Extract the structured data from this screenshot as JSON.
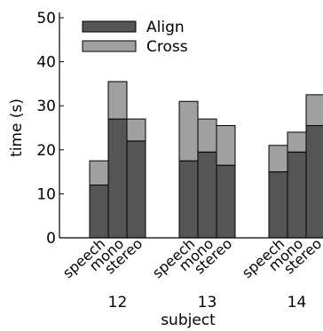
{
  "chart_data": {
    "type": "bar",
    "stacked": true,
    "title": "",
    "ylabel": "time (s)",
    "xlabel": "subject",
    "ylim": [
      0,
      50
    ],
    "yticks": [
      0,
      10,
      20,
      30,
      40,
      50
    ],
    "legend_position": "top-left",
    "grid": false,
    "groups": [
      "12",
      "13",
      "14"
    ],
    "conditions": [
      "speech",
      "mono",
      "stereo"
    ],
    "series": [
      {
        "name": "Align",
        "color": "#555555",
        "values": [
          [
            12,
            27,
            22
          ],
          [
            17.5,
            19.5,
            16.5
          ],
          [
            15,
            19.5,
            25.5
          ]
        ]
      },
      {
        "name": "Cross",
        "color": "#a0a0a0",
        "values": [
          [
            5.5,
            8.5,
            5
          ],
          [
            13.5,
            7.5,
            9
          ],
          [
            6,
            4.5,
            7
          ]
        ]
      }
    ]
  }
}
